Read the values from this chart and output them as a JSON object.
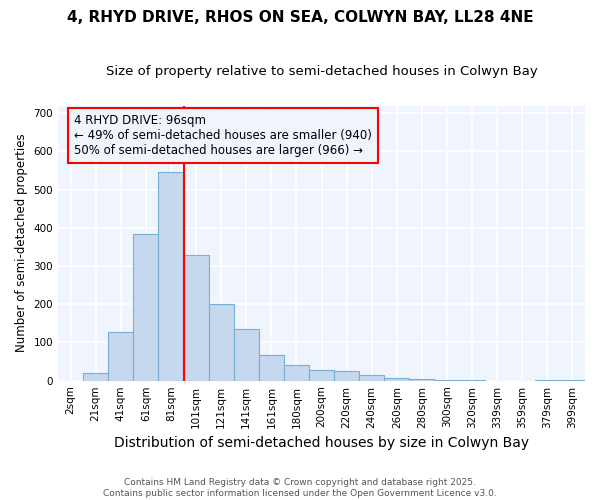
{
  "title1": "4, RHYD DRIVE, RHOS ON SEA, COLWYN BAY, LL28 4NE",
  "title2": "Size of property relative to semi-detached houses in Colwyn Bay",
  "xlabel": "Distribution of semi-detached houses by size in Colwyn Bay",
  "ylabel": "Number of semi-detached properties",
  "categories": [
    "2sqm",
    "21sqm",
    "41sqm",
    "61sqm",
    "81sqm",
    "101sqm",
    "121sqm",
    "141sqm",
    "161sqm",
    "180sqm",
    "200sqm",
    "220sqm",
    "240sqm",
    "260sqm",
    "280sqm",
    "300sqm",
    "320sqm",
    "339sqm",
    "359sqm",
    "379sqm",
    "399sqm"
  ],
  "values": [
    0,
    20,
    128,
    385,
    545,
    330,
    200,
    135,
    68,
    42,
    28,
    25,
    15,
    8,
    5,
    3,
    1,
    0,
    0,
    1,
    3
  ],
  "bar_color": "#c5d8ed",
  "bar_edge_color": "#7aafd4",
  "vline_x": 4.5,
  "vline_color": "red",
  "annotation_text": "4 RHYD DRIVE: 96sqm\n← 49% of semi-detached houses are smaller (940)\n50% of semi-detached houses are larger (966) →",
  "annotation_box_color": "red",
  "ylim": [
    0,
    720
  ],
  "yticks": [
    0,
    100,
    200,
    300,
    400,
    500,
    600,
    700
  ],
  "background_color": "#ffffff",
  "plot_bg_color": "#f0f4fc",
  "grid_color": "#ffffff",
  "footer_text": "Contains HM Land Registry data © Crown copyright and database right 2025.\nContains public sector information licensed under the Open Government Licence v3.0.",
  "title1_fontsize": 11,
  "title2_fontsize": 9.5,
  "xlabel_fontsize": 10,
  "ylabel_fontsize": 8.5,
  "tick_fontsize": 7.5,
  "footer_fontsize": 6.5,
  "annot_fontsize": 8.5
}
